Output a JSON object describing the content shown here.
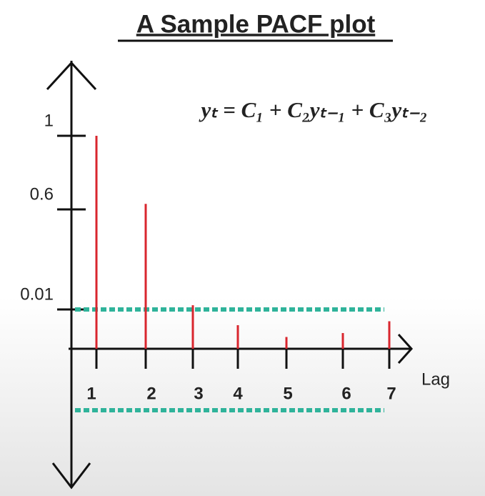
{
  "chart_data": {
    "type": "stem",
    "title": "A Sample PACF plot",
    "equation": "yₜ = C₁ + C₂yₜ₋₁ + C₃yₜ₋₂",
    "x_label": "Lag",
    "categories": [
      "1",
      "2",
      "3",
      "4",
      "5",
      "6",
      "7"
    ],
    "values": [
      1.0,
      0.63,
      0.035,
      0.006,
      0.003,
      0.004,
      0.007
    ],
    "color": "#d9262e",
    "ylim": [
      -0.02,
      1.4
    ],
    "yticks": [
      0.01,
      0.6,
      1
    ],
    "hlines": [
      0.01,
      -0.01
    ],
    "hline_color": "#2fb39a"
  }
}
